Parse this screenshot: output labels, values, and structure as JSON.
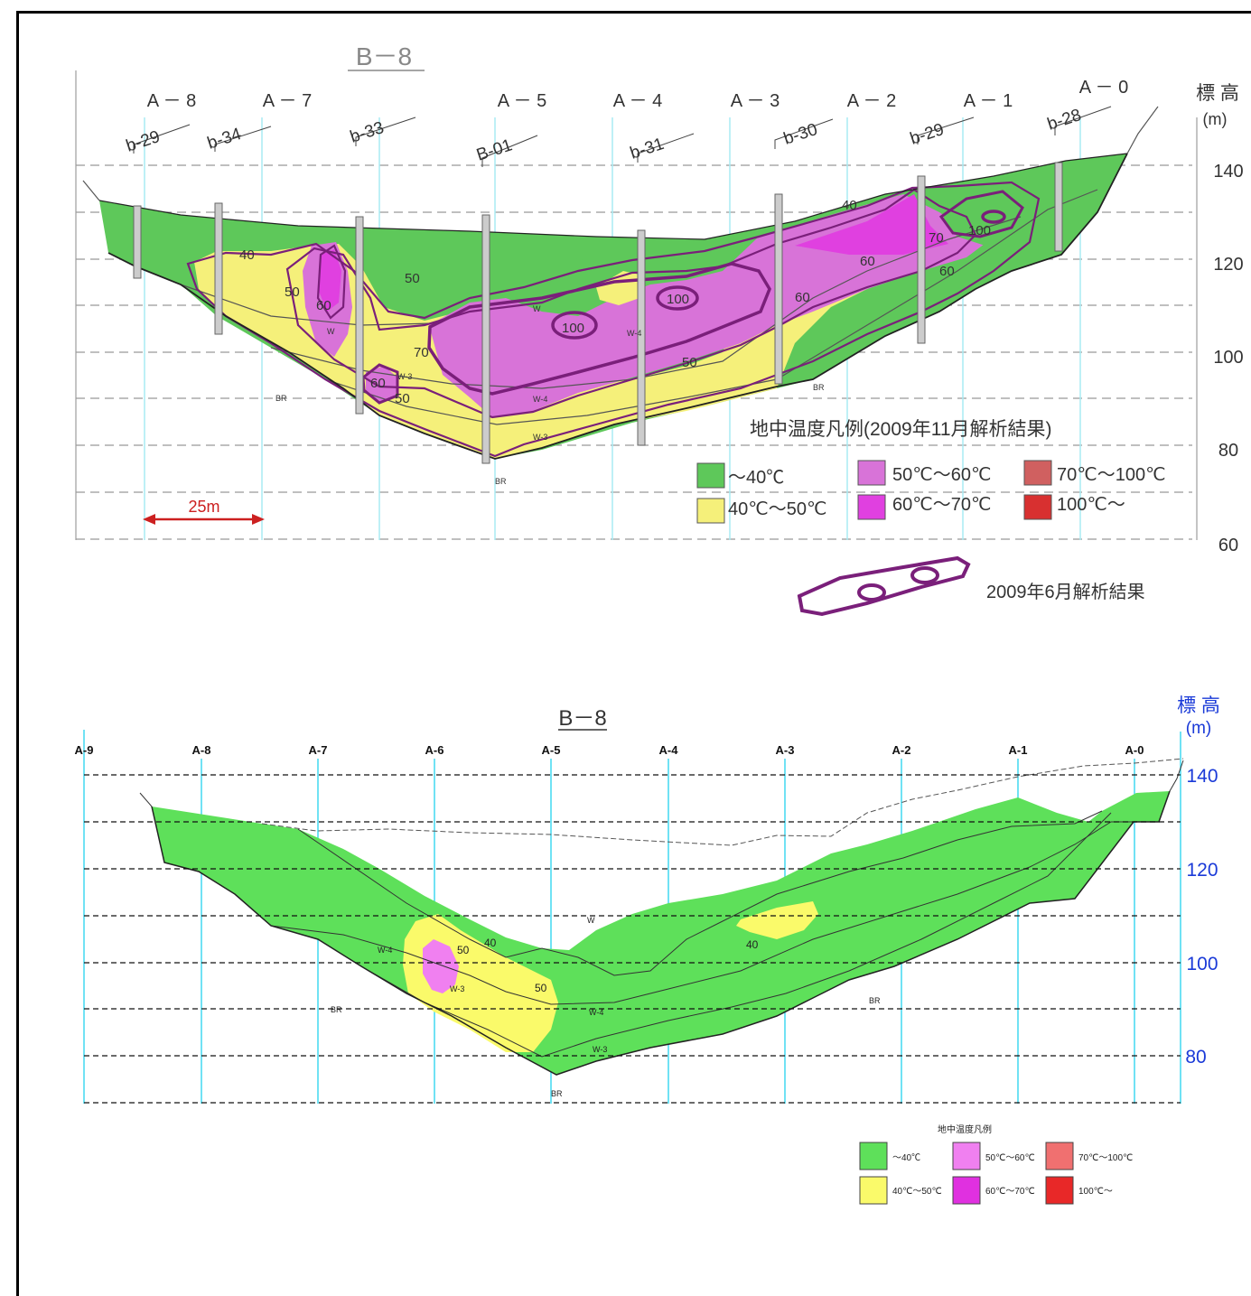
{
  "upper": {
    "title": "B－8",
    "stations": [
      "A － 8",
      "A － 7",
      "A － 5",
      "A － 4",
      "A － 3",
      "A － 2",
      "A － 1",
      "A － 0"
    ],
    "boreholes": [
      "b-29",
      "b-34",
      "b-33",
      "B-01",
      "b-31",
      "b-30",
      "b-29",
      "b-28"
    ],
    "elev_title": "標 高",
    "elev_unit": "(m)",
    "elev_ticks": [
      "140",
      "120",
      "100",
      "80",
      "60"
    ],
    "contour_labels": [
      "40",
      "50",
      "60",
      "50",
      "70",
      "60",
      "50",
      "100",
      "100",
      "50",
      "40",
      "60",
      "60",
      "70",
      "100",
      "60"
    ],
    "geo_labels": [
      "W",
      "W-3",
      "BR",
      "W-4",
      "W",
      "W-3",
      "W-4",
      "BR",
      "BR"
    ],
    "scale_label": "25m",
    "legend_title": "地中温度凡例(2009年11月解析結果)",
    "legend": [
      {
        "label": "～40℃",
        "color": "#5ec85a"
      },
      {
        "label": "50℃～60℃",
        "color": "#d873d8"
      },
      {
        "label": "70℃～100℃",
        "color": "#d06060"
      },
      {
        "label": "40℃～50℃",
        "color": "#f5f07a"
      },
      {
        "label": "60℃～70℃",
        "color": "#e040e0"
      },
      {
        "label": "100℃～",
        "color": "#d83030"
      }
    ],
    "june_label": "2009年6月解析結果"
  },
  "lower": {
    "title": "B－8",
    "stations": [
      "A-9",
      "A-8",
      "A-7",
      "A-6",
      "A-5",
      "A-4",
      "A-3",
      "A-2",
      "A-1",
      "A-0"
    ],
    "elev_title": "標 高",
    "elev_unit": "(m)",
    "elev_ticks": [
      "140",
      "120",
      "100",
      "80"
    ],
    "contour_labels": [
      "40",
      "50",
      "50",
      "40"
    ],
    "geo_labels": [
      "W",
      "W-4",
      "W-3",
      "BR",
      "W-4",
      "W-3",
      "BR",
      "BR"
    ],
    "legend_title": "地中温度凡例",
    "legend": [
      {
        "label": "～40℃",
        "color": "#5ee05a"
      },
      {
        "label": "50℃～60℃",
        "color": "#f080f0"
      },
      {
        "label": "70℃～100℃",
        "color": "#f07070"
      },
      {
        "label": "40℃～50℃",
        "color": "#fafa6a"
      },
      {
        "label": "60℃～70℃",
        "color": "#e030e0"
      },
      {
        "label": "100℃～",
        "color": "#e82828"
      }
    ]
  }
}
